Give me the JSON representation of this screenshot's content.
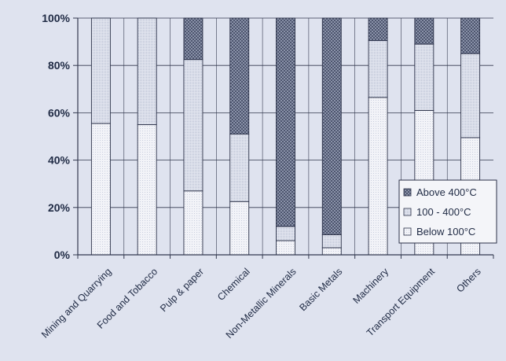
{
  "chart_data": {
    "type": "bar",
    "stacked": true,
    "title": "",
    "xlabel": "",
    "ylabel": "",
    "ylim": [
      0,
      100
    ],
    "yticks": [
      "0%",
      "20%",
      "40%",
      "60%",
      "80%",
      "100%"
    ],
    "grid": true,
    "legend_position": "bottom-right",
    "categories": [
      "Mining and Quarrying",
      "Food and Tobacco",
      "Pulp & paper",
      "Chemical",
      "Non-Metallic Minerals",
      "Basic Metals",
      "Machinery",
      "Transport Equipment",
      "Others"
    ],
    "series": [
      {
        "name": "Below 100°C",
        "values": [
          55.5,
          55,
          27,
          22.5,
          6,
          3,
          66.5,
          61,
          49.5
        ],
        "color": "#f2f3f8"
      },
      {
        "name": "100 - 400°C",
        "values": [
          44.5,
          45,
          55.5,
          28.5,
          6,
          5.5,
          24,
          28,
          35.5
        ],
        "color": "#dde1ed"
      },
      {
        "name": "Above 400°C",
        "values": [
          0,
          0,
          17.5,
          49,
          88,
          91.5,
          9.5,
          11,
          15
        ],
        "color": "#8e96ab"
      }
    ]
  }
}
